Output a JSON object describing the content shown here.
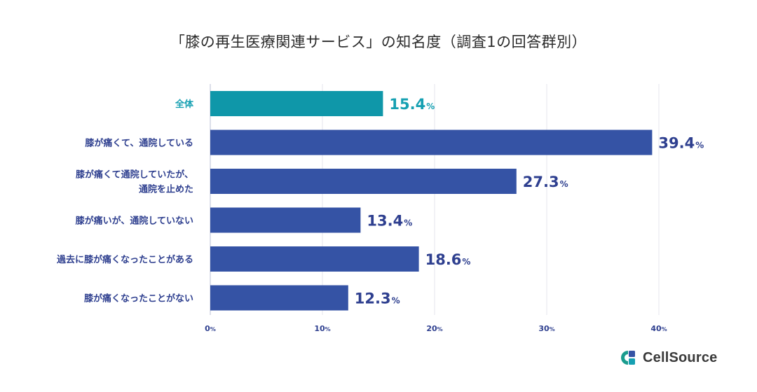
{
  "chart_data": {
    "type": "bar",
    "orientation": "horizontal",
    "title": "「膝の再生医療関連サービス」の知名度（調査1の回答群別）",
    "categories": [
      [
        "全体"
      ],
      [
        "膝が痛くて、通院している"
      ],
      [
        "膝が痛くて通院していたが、",
        "通院を止めた"
      ],
      [
        "膝が痛いが、通院していない"
      ],
      [
        "過去に膝が痛くなったことがある"
      ],
      [
        "膝が痛くなったことがない"
      ]
    ],
    "values": [
      15.4,
      39.4,
      27.3,
      13.4,
      18.6,
      12.3
    ],
    "value_unit": "%",
    "xlim": [
      0,
      40
    ],
    "xticks": [
      0,
      10,
      20,
      30,
      40
    ],
    "tick_unit": "%",
    "grid": true,
    "colors": {
      "highlight": "#0f97a9",
      "default": "#3553a5",
      "axis": "#2e3f8f"
    },
    "highlight_index": 0
  },
  "logo": {
    "text": "CellSource",
    "icon": "cellsource-logo-icon",
    "color": "#1a9c8e"
  }
}
